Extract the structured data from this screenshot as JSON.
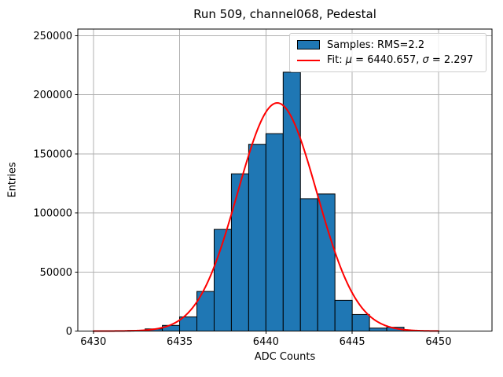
{
  "figure": {
    "background": "#ffffff"
  },
  "chart_data": {
    "type": "bar",
    "subtype": "histogram_with_gaussian_fit",
    "title": "Run 509, channel068, Pedestal",
    "xlabel": "ADC Counts",
    "ylabel": "Entries",
    "xlim": [
      6429.1,
      6453.1
    ],
    "ylim": [
      0,
      255500
    ],
    "xticks": [
      6430,
      6435,
      6440,
      6445,
      6450
    ],
    "yticks": [
      0,
      50000,
      100000,
      150000,
      200000,
      250000
    ],
    "grid": true,
    "legend_position": "upper right",
    "colors": {
      "bar_fill": "#1f77b4",
      "bar_edge": "#000000",
      "fit_line": "#ff0000",
      "grid": "#b0b0b0",
      "axes": "#000000",
      "legend_border": "#cccccc"
    },
    "histogram": {
      "bin_width": 1,
      "bin_left_edges": [
        6432,
        6433,
        6434,
        6435,
        6436,
        6437,
        6438,
        6439,
        6440,
        6441,
        6442,
        6443,
        6444,
        6445,
        6446,
        6447
      ],
      "counts": [
        500,
        1800,
        4800,
        12000,
        33500,
        86000,
        133000,
        158000,
        167000,
        219000,
        112000,
        116000,
        26000,
        14000,
        2500,
        3200
      ]
    },
    "fit": {
      "mu": 6440.657,
      "sigma": 2.297,
      "amplitude": 193000,
      "x_start": 6430,
      "x_end": 6450
    },
    "legend": {
      "samples_label": "Samples: RMS=2.2",
      "fit_label_parts": {
        "prefix": "Fit: ",
        "mu_symbol": "μ",
        "mu_value": " = 6440.657, ",
        "sigma_symbol": "σ",
        "sigma_value": " = 2.297"
      }
    }
  }
}
